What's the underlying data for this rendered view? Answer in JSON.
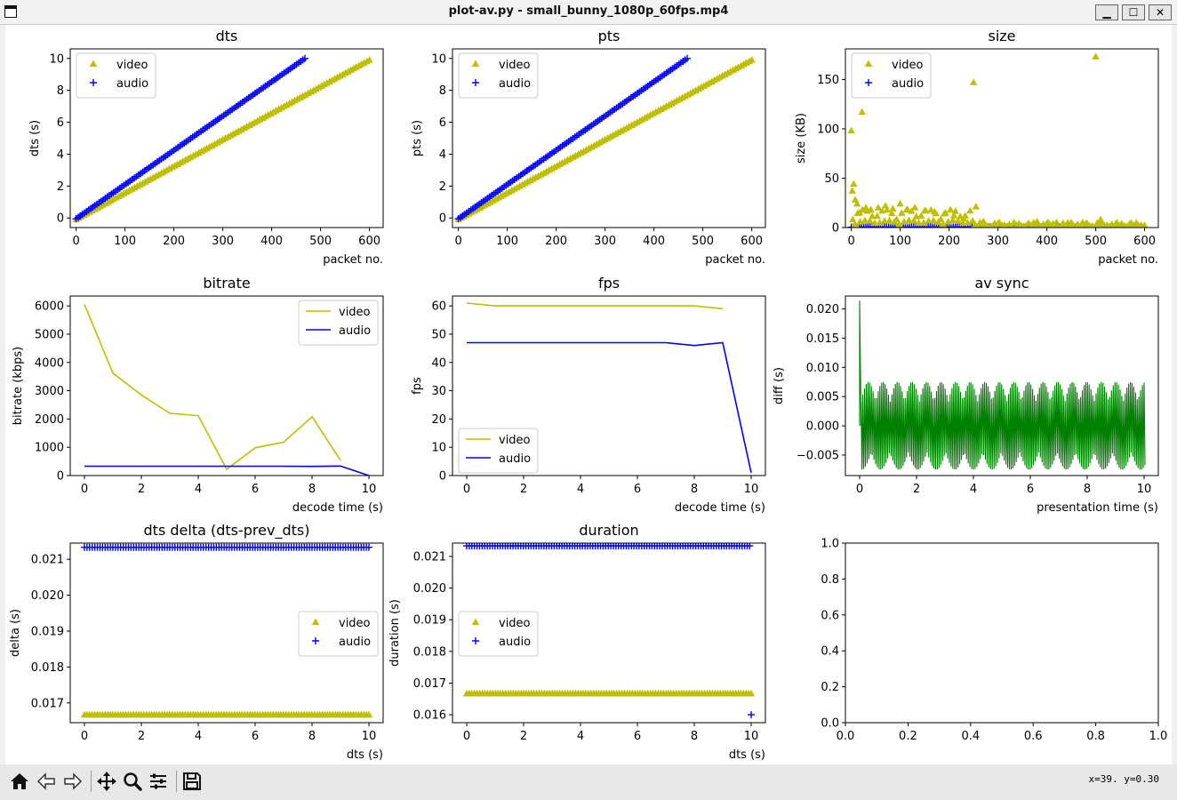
{
  "window": {
    "title": "plot-av.py - small_bunny_1080p_60fps.mp4",
    "min_label": "▁",
    "max_label": "☐",
    "close_label": "✕"
  },
  "toolbar": {
    "coords": "x=39. y=0.30",
    "icons": [
      "home-icon",
      "back-icon",
      "forward-icon",
      "pan-icon",
      "zoom-icon",
      "configure-subplots-icon",
      "save-icon"
    ]
  },
  "colors": {
    "video": "#bfbf00",
    "audio": "#0000ff",
    "sync": "#008000"
  },
  "chart_data": [
    {
      "id": "dts",
      "type": "scatter",
      "title": "dts",
      "xlabel": "packet no.",
      "ylabel": "dts (s)",
      "xlim": [
        -12,
        628
      ],
      "ylim": [
        -0.6,
        10.6
      ],
      "xticks": [
        0,
        100,
        200,
        300,
        400,
        500,
        600
      ],
      "yticks": [
        0,
        2,
        4,
        6,
        8,
        10
      ],
      "legend": "top-left",
      "series": [
        {
          "name": "video",
          "marker": "triangle",
          "color": "#bfbf00",
          "x0": 0,
          "x1": 600,
          "y0": -0.1,
          "y1": 9.9
        },
        {
          "name": "audio",
          "marker": "plus",
          "color": "#0000ff",
          "x0": 0,
          "x1": 468,
          "y0": -0.05,
          "y1": 10.0
        }
      ]
    },
    {
      "id": "pts",
      "type": "scatter",
      "title": "pts",
      "xlabel": "packet no.",
      "ylabel": "pts (s)",
      "xlim": [
        -12,
        628
      ],
      "ylim": [
        -0.6,
        10.6
      ],
      "xticks": [
        0,
        100,
        200,
        300,
        400,
        500,
        600
      ],
      "yticks": [
        0,
        2,
        4,
        6,
        8,
        10
      ],
      "legend": "top-left",
      "series": [
        {
          "name": "video",
          "marker": "triangle",
          "color": "#bfbf00",
          "x0": 0,
          "x1": 600,
          "y0": -0.1,
          "y1": 9.9
        },
        {
          "name": "audio",
          "marker": "plus",
          "color": "#0000ff",
          "x0": 0,
          "x1": 468,
          "y0": -0.05,
          "y1": 10.0
        }
      ]
    },
    {
      "id": "size",
      "type": "scatter",
      "title": "size",
      "xlabel": "packet no.",
      "ylabel": "size (KB)",
      "xlim": [
        -12,
        628
      ],
      "ylim": [
        0,
        181
      ],
      "xticks": [
        0,
        100,
        200,
        300,
        400,
        500,
        600
      ],
      "yticks": [
        0,
        50,
        100,
        150
      ],
      "legend": "top-left",
      "series": [
        {
          "name": "video",
          "marker": "triangle",
          "color": "#bfbf00",
          "points": [
            [
              0,
              98
            ],
            [
              2,
              37
            ],
            [
              5,
              44
            ],
            [
              8,
              28
            ],
            [
              12,
              24
            ],
            [
              17,
              15
            ],
            [
              22,
              117
            ],
            [
              30,
              20
            ],
            [
              40,
              18
            ],
            [
              55,
              20
            ],
            [
              70,
              22
            ],
            [
              85,
              19
            ],
            [
              100,
              24
            ],
            [
              115,
              18
            ],
            [
              130,
              20
            ],
            [
              150,
              17
            ],
            [
              170,
              16
            ],
            [
              190,
              14
            ],
            [
              210,
              12
            ],
            [
              230,
              9
            ],
            [
              250,
              147
            ],
            [
              255,
              21
            ],
            [
              270,
              6
            ],
            [
              300,
              4
            ],
            [
              330,
              3
            ],
            [
              360,
              3
            ],
            [
              380,
              6
            ],
            [
              400,
              4
            ],
            [
              420,
              5
            ],
            [
              450,
              5
            ],
            [
              480,
              4
            ],
            [
              500,
              173
            ],
            [
              510,
              8
            ],
            [
              540,
              3
            ],
            [
              570,
              4
            ],
            [
              600,
              2
            ]
          ]
        },
        {
          "name": "audio",
          "marker": "plus",
          "color": "#0000ff",
          "x0": 0,
          "x1": 468,
          "y0": 0.4,
          "y1": 0.4
        }
      ]
    },
    {
      "id": "bitrate",
      "type": "line",
      "title": "bitrate",
      "xlabel": "decode time (s)",
      "ylabel": "bitrate (kbps)",
      "xlim": [
        -0.5,
        10.5
      ],
      "ylim": [
        0,
        6350
      ],
      "xticks": [
        0,
        2,
        4,
        6,
        8,
        10
      ],
      "yticks": [
        0,
        1000,
        2000,
        3000,
        4000,
        5000,
        6000
      ],
      "legend": "top-right",
      "series": [
        {
          "name": "video",
          "color": "#bfbf00",
          "x": [
            0,
            1,
            2,
            3,
            4,
            5,
            6,
            7,
            8,
            9
          ],
          "values": [
            6050,
            3620,
            2850,
            2200,
            2120,
            220,
            980,
            1180,
            2080,
            540
          ]
        },
        {
          "name": "audio",
          "color": "#0000ff",
          "x": [
            0,
            1,
            2,
            3,
            4,
            5,
            6,
            7,
            8,
            9,
            10
          ],
          "values": [
            330,
            330,
            330,
            330,
            330,
            330,
            330,
            330,
            325,
            335,
            0
          ]
        }
      ]
    },
    {
      "id": "fps",
      "type": "line",
      "title": "fps",
      "xlabel": "decode time (s)",
      "ylabel": "fps",
      "xlim": [
        -0.5,
        10.5
      ],
      "ylim": [
        0,
        63.5
      ],
      "xticks": [
        0,
        2,
        4,
        6,
        8,
        10
      ],
      "yticks": [
        0,
        10,
        20,
        30,
        40,
        50,
        60
      ],
      "legend": "bottom-left",
      "series": [
        {
          "name": "video",
          "color": "#bfbf00",
          "x": [
            0,
            1,
            2,
            3,
            4,
            5,
            6,
            7,
            8,
            9
          ],
          "values": [
            61,
            60,
            60,
            60,
            60,
            60,
            60,
            60,
            60,
            59
          ]
        },
        {
          "name": "audio",
          "color": "#0000ff",
          "x": [
            0,
            1,
            2,
            3,
            4,
            5,
            6,
            7,
            8,
            9,
            10
          ],
          "values": [
            47,
            47,
            47,
            47,
            47,
            47,
            47,
            47,
            46,
            47,
            1
          ]
        }
      ]
    },
    {
      "id": "avsync",
      "type": "line",
      "title": "av sync",
      "xlabel": "presentation time (s)",
      "ylabel": "diff (s)",
      "xlim": [
        -0.5,
        10.5
      ],
      "ylim": [
        -0.0085,
        0.0222
      ],
      "xticks": [
        0,
        2,
        4,
        6,
        8,
        10
      ],
      "yticks": [
        -0.005,
        0.0,
        0.005,
        0.01,
        0.015,
        0.02
      ],
      "ytick_labels": [
        "−0.005",
        "0.000",
        "0.005",
        "0.010",
        "0.015",
        "0.020"
      ],
      "series": [
        {
          "name": "diff",
          "color": "#008000",
          "spike": 0.0214,
          "hi": 0.0075,
          "lo": -0.0075,
          "cycles": 165
        }
      ]
    },
    {
      "id": "dtsdelta",
      "type": "scatter",
      "title": "dts delta (dts-prev_dts)",
      "xlabel": "dts (s)",
      "ylabel": "delta (s)",
      "xlim": [
        -0.5,
        10.5
      ],
      "ylim": [
        0.01645,
        0.02145
      ],
      "xticks": [
        0,
        2,
        4,
        6,
        8,
        10
      ],
      "yticks": [
        0.017,
        0.018,
        0.019,
        0.02,
        0.021
      ],
      "ytick_labels": [
        "0.017",
        "0.018",
        "0.019",
        "0.020",
        "0.021"
      ],
      "legend": "center-right",
      "series": [
        {
          "name": "video",
          "marker": "triangle",
          "color": "#bfbf00",
          "x0": 0,
          "x1": 10,
          "y0": 0.016667,
          "y1": 0.016667
        },
        {
          "name": "audio",
          "marker": "plus",
          "color": "#0000ff",
          "x0": 0,
          "x1": 10,
          "y0": 0.021333,
          "y1": 0.021333
        }
      ]
    },
    {
      "id": "duration",
      "type": "scatter",
      "title": "duration",
      "xlabel": "dts (s)",
      "ylabel": "duration (s)",
      "xlim": [
        -0.5,
        10.5
      ],
      "ylim": [
        0.01575,
        0.02142
      ],
      "xticks": [
        0,
        2,
        4,
        6,
        8,
        10
      ],
      "yticks": [
        0.016,
        0.017,
        0.018,
        0.019,
        0.02,
        0.021
      ],
      "ytick_labels": [
        "0.016",
        "0.017",
        "0.018",
        "0.019",
        "0.020",
        "0.021"
      ],
      "legend": "center-left",
      "series": [
        {
          "name": "video",
          "marker": "triangle",
          "color": "#bfbf00",
          "x0": 0,
          "x1": 10,
          "y0": 0.016667,
          "y1": 0.016667
        },
        {
          "name": "audio",
          "marker": "plus",
          "color": "#0000ff",
          "x0": 0,
          "x1": 9.95,
          "y0": 0.021333,
          "y1": 0.021333,
          "extra": [
            [
              10,
              0.016
            ]
          ]
        }
      ]
    },
    {
      "id": "empty",
      "type": "scatter",
      "title": "",
      "xlabel": "",
      "ylabel": "",
      "xlim": [
        0,
        1
      ],
      "ylim": [
        0,
        1
      ],
      "xticks": [
        0,
        0.2,
        0.4,
        0.6,
        0.8,
        1.0
      ],
      "yticks": [
        0,
        0.2,
        0.4,
        0.6,
        0.8,
        1.0
      ],
      "xtick_labels": [
        "0.0",
        "0.2",
        "0.4",
        "0.6",
        "0.8",
        "1.0"
      ],
      "ytick_labels": [
        "0.0",
        "0.2",
        "0.4",
        "0.6",
        "0.8",
        "1.0"
      ],
      "series": []
    }
  ]
}
